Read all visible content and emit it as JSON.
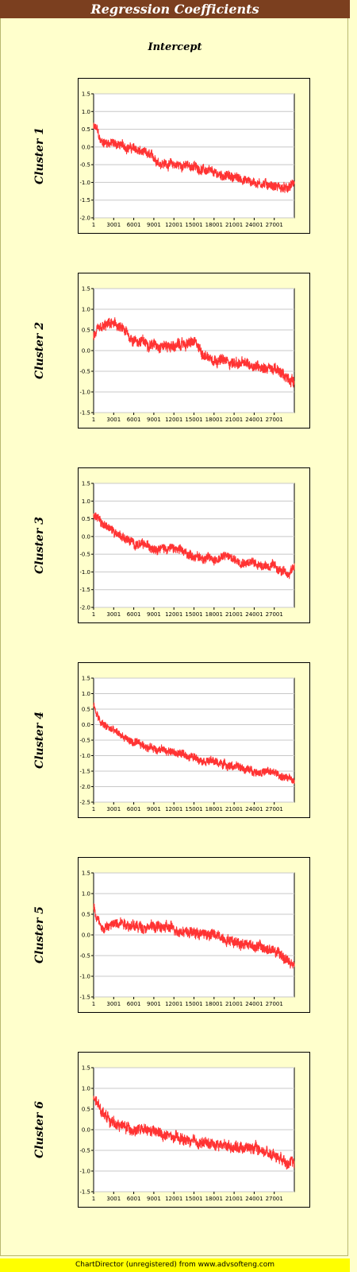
{
  "title": "Regression Coefficients",
  "subtitle": "Intercept",
  "footer": "ChartDirector (unregistered) from www.advsofteng.com",
  "colors": {
    "title_bg": "#7b3f1f",
    "background": "#ffffcc",
    "plot_bg": "#ffffff",
    "line": "#ff3333",
    "footer_bg": "#ffff00"
  },
  "chart_data": [
    {
      "type": "line",
      "ylabel": "Cluster 1",
      "ylim": [
        -2.0,
        1.5
      ],
      "yticks": [
        1.5,
        1.0,
        0.5,
        0.0,
        -0.5,
        -1.0,
        -1.5,
        -2.0
      ],
      "xlim": [
        1,
        30000
      ],
      "xticks": [
        1,
        3001,
        6001,
        9001,
        12001,
        15001,
        18001,
        21001,
        24001,
        27001
      ],
      "series": [
        {
          "x": [
            1,
            500,
            1000,
            3001,
            6001,
            9001,
            10000,
            12001,
            15001,
            18001,
            21001,
            24001,
            26000,
            27001,
            29000,
            30000
          ],
          "values": [
            0.55,
            0.5,
            0.15,
            0.1,
            -0.05,
            -0.3,
            -0.45,
            -0.5,
            -0.55,
            -0.75,
            -0.85,
            -1.0,
            -1.05,
            -1.1,
            -1.2,
            -1.0
          ]
        }
      ]
    },
    {
      "type": "line",
      "ylabel": "Cluster 2",
      "ylim": [
        -1.5,
        1.5
      ],
      "yticks": [
        1.5,
        1.0,
        0.5,
        0.0,
        -0.5,
        -1.0,
        -1.5
      ],
      "xlim": [
        1,
        30000
      ],
      "xticks": [
        1,
        3001,
        6001,
        9001,
        12001,
        15001,
        18001,
        21001,
        24001,
        27001
      ],
      "series": [
        {
          "x": [
            1,
            1000,
            2500,
            3500,
            5000,
            6001,
            9001,
            12001,
            13500,
            15001,
            16500,
            18001,
            21001,
            24001,
            27001,
            28500,
            30000
          ],
          "values": [
            0.35,
            0.5,
            0.65,
            0.6,
            0.4,
            0.25,
            0.15,
            0.1,
            0.15,
            0.2,
            -0.1,
            -0.2,
            -0.3,
            -0.35,
            -0.45,
            -0.6,
            -0.75
          ]
        }
      ]
    },
    {
      "type": "line",
      "ylabel": "Cluster 3",
      "ylim": [
        -2.0,
        1.5
      ],
      "yticks": [
        1.5,
        1.0,
        0.5,
        0.0,
        -0.5,
        -1.0,
        -1.5,
        -2.0
      ],
      "xlim": [
        1,
        30000
      ],
      "xticks": [
        1,
        3001,
        6001,
        9001,
        12001,
        15001,
        18001,
        21001,
        24001,
        27001
      ],
      "series": [
        {
          "x": [
            1,
            1000,
            3001,
            6001,
            9001,
            12001,
            15001,
            18001,
            20000,
            21001,
            24001,
            27001,
            29000,
            30000
          ],
          "values": [
            0.65,
            0.4,
            0.15,
            -0.2,
            -0.3,
            -0.35,
            -0.55,
            -0.65,
            -0.55,
            -0.65,
            -0.75,
            -0.85,
            -1.1,
            -0.8
          ]
        }
      ]
    },
    {
      "type": "line",
      "ylabel": "Cluster 4",
      "ylim": [
        -2.5,
        1.5
      ],
      "yticks": [
        1.5,
        1.0,
        0.5,
        0.0,
        -0.5,
        -1.0,
        -1.5,
        -2.0,
        -2.5
      ],
      "xlim": [
        1,
        30000
      ],
      "xticks": [
        1,
        3001,
        6001,
        9001,
        12001,
        15001,
        18001,
        21001,
        24001,
        27001
      ],
      "series": [
        {
          "x": [
            1,
            1000,
            3001,
            6001,
            9001,
            12001,
            15001,
            18001,
            21001,
            24001,
            27001,
            29000,
            30000
          ],
          "values": [
            0.6,
            0.05,
            -0.2,
            -0.6,
            -0.75,
            -0.9,
            -1.05,
            -1.2,
            -1.35,
            -1.5,
            -1.55,
            -1.75,
            -1.8
          ]
        }
      ]
    },
    {
      "type": "line",
      "ylabel": "Cluster 5",
      "ylim": [
        -1.5,
        1.5
      ],
      "yticks": [
        1.5,
        1.0,
        0.5,
        0.0,
        -0.5,
        -1.0,
        -1.5
      ],
      "xlim": [
        1,
        30000
      ],
      "xticks": [
        1,
        3001,
        6001,
        9001,
        12001,
        15001,
        18001,
        21001,
        24001,
        27001
      ],
      "series": [
        {
          "x": [
            1,
            500,
            1500,
            3001,
            4000,
            6001,
            9001,
            12001,
            15001,
            18001,
            21001,
            24001,
            27001,
            29000,
            30000
          ],
          "values": [
            0.7,
            0.4,
            0.15,
            0.25,
            0.35,
            0.2,
            0.2,
            0.15,
            0.05,
            0.0,
            -0.15,
            -0.25,
            -0.4,
            -0.6,
            -0.8
          ]
        }
      ]
    },
    {
      "type": "line",
      "ylabel": "Cluster 6",
      "ylim": [
        -1.5,
        1.5
      ],
      "yticks": [
        1.5,
        1.0,
        0.5,
        0.0,
        -0.5,
        -1.0,
        -1.5
      ],
      "xlim": [
        1,
        30000
      ],
      "xticks": [
        1,
        3001,
        6001,
        9001,
        12001,
        15001,
        18001,
        21001,
        24001,
        27001
      ],
      "series": [
        {
          "x": [
            1,
            1000,
            3001,
            6001,
            9001,
            12001,
            15001,
            18001,
            21001,
            24001,
            27001,
            29000,
            30000
          ],
          "values": [
            0.75,
            0.5,
            0.15,
            0.0,
            -0.05,
            -0.2,
            -0.3,
            -0.35,
            -0.4,
            -0.45,
            -0.6,
            -0.75,
            -0.85
          ]
        }
      ]
    }
  ]
}
